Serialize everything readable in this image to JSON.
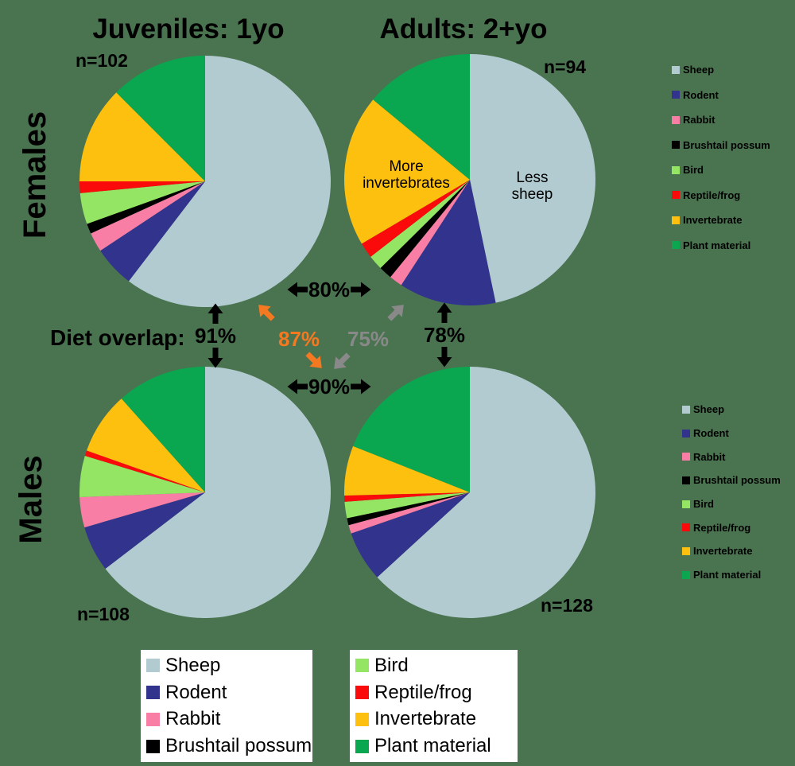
{
  "titles": {
    "juveniles": "Juveniles: 1yo",
    "adults": "Adults: 2+yo"
  },
  "row_labels": {
    "females": "Females",
    "males": "Males"
  },
  "annotations": {
    "more": "More invertebrates",
    "less": "Less sheep"
  },
  "overlap": {
    "heading": "Diet overlap:",
    "females_row": "80%",
    "males_row": "90%",
    "juveniles_col": "91%",
    "adults_col": "78%",
    "cross_orange": "87%",
    "cross_gray": "75%"
  },
  "colors": {
    "background": "#4a7350",
    "arrow_black": "#000000",
    "arrow_orange": "#f47920",
    "arrow_gray": "#898989",
    "legend_box_bg": "#ffffff",
    "text": "#000000"
  },
  "chart_data": {
    "type": "pie",
    "unit": "percent of diet",
    "start_angle": "12 o'clock, clockwise",
    "legend_position": "right (x2) and bottom (two white boxes)",
    "categories": [
      {
        "label": "Sheep",
        "color": "#b2cbd0"
      },
      {
        "label": "Rodent",
        "color": "#31338d"
      },
      {
        "label": "Rabbit",
        "color": "#f97ea6"
      },
      {
        "label": "Brushtail possum",
        "color": "#000000"
      },
      {
        "label": "Bird",
        "color": "#94e564"
      },
      {
        "label": "Reptile/frog",
        "color": "#fa0a0a"
      },
      {
        "label": "Invertebrate",
        "color": "#fdc00e"
      },
      {
        "label": "Plant material",
        "color": "#0aa650"
      }
    ],
    "pies": [
      {
        "id": "female-juvenile",
        "group": "Females / Juveniles: 1yo",
        "n": 102,
        "n_label": "n=102",
        "values": [
          60.4,
          5.3,
          2.5,
          1.3,
          4.0,
          1.5,
          12.5,
          12.5
        ]
      },
      {
        "id": "female-adult",
        "group": "Females / Adults: 2+yo",
        "n": 94,
        "n_label": "n=94",
        "values": [
          46.7,
          12.5,
          1.7,
          1.7,
          1.9,
          2.0,
          19.5,
          14.0
        ],
        "annotations": [
          "More invertebrates",
          "Less sheep"
        ]
      },
      {
        "id": "male-juvenile",
        "group": "Males / Juveniles: 1yo",
        "n": 108,
        "n_label": "n=108",
        "values": [
          64.6,
          5.9,
          3.9,
          0.0,
          5.3,
          0.7,
          8.0,
          11.6
        ]
      },
      {
        "id": "male-adult",
        "group": "Males / Adults: 2+yo",
        "n": 128,
        "n_label": "n=128",
        "values": [
          63.2,
          6.5,
          1.1,
          0.9,
          2.1,
          0.8,
          6.4,
          19.0
        ]
      }
    ],
    "overlaps": [
      {
        "between": "female juveniles and female adults",
        "value": 80,
        "color": "black"
      },
      {
        "between": "male juveniles and male adults",
        "value": 90,
        "color": "black"
      },
      {
        "between": "female juveniles and male juveniles",
        "value": 91,
        "color": "black"
      },
      {
        "between": "female adults and male adults",
        "value": 78,
        "color": "black"
      },
      {
        "between": "female juveniles and male adults",
        "value": 87,
        "color": "orange"
      },
      {
        "between": "female adults and male juveniles",
        "value": 75,
        "color": "gray"
      }
    ]
  }
}
